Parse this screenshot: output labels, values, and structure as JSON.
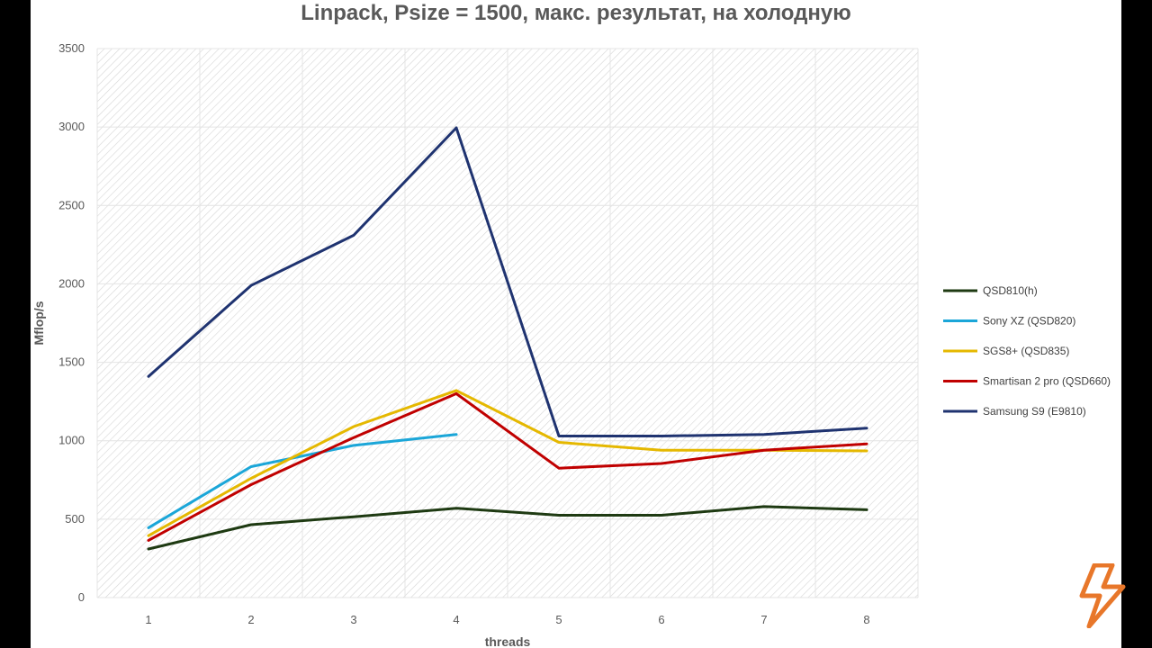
{
  "chart_data": {
    "type": "line",
    "title": "Linpack, Psize = 1500, макс. результат, на холодную",
    "xlabel": "threads",
    "ylabel": "Mflop/s",
    "x": [
      1,
      2,
      3,
      4,
      5,
      6,
      7,
      8
    ],
    "ylim": [
      0,
      3500
    ],
    "yticks": [
      0,
      500,
      1000,
      1500,
      2000,
      2500,
      3000,
      3500
    ],
    "grid": true,
    "legend_position": "right",
    "series": [
      {
        "name": "QSD810(h)",
        "color": "#1e3a12",
        "values": [
          310,
          465,
          515,
          570,
          525,
          525,
          580,
          560
        ]
      },
      {
        "name": "Sony XZ (QSD820)",
        "color": "#1ba6d8",
        "values": [
          445,
          835,
          970,
          1040,
          null,
          null,
          null,
          null
        ]
      },
      {
        "name": "SGS8+ (QSD835)",
        "color": "#e5b800",
        "values": [
          395,
          760,
          1090,
          1320,
          990,
          940,
          940,
          935
        ]
      },
      {
        "name": "Smartisan 2 pro (QSD660)",
        "color": "#c00000",
        "values": [
          365,
          720,
          1020,
          1300,
          825,
          855,
          940,
          980
        ]
      },
      {
        "name": "Samsung S9 (E9810)",
        "color": "#1f3370",
        "values": [
          1410,
          1990,
          2310,
          2995,
          1030,
          1030,
          1040,
          1080
        ]
      }
    ]
  },
  "branding": {
    "logo": "lightning-bolt-icon",
    "logo_color": "#e8772a"
  }
}
